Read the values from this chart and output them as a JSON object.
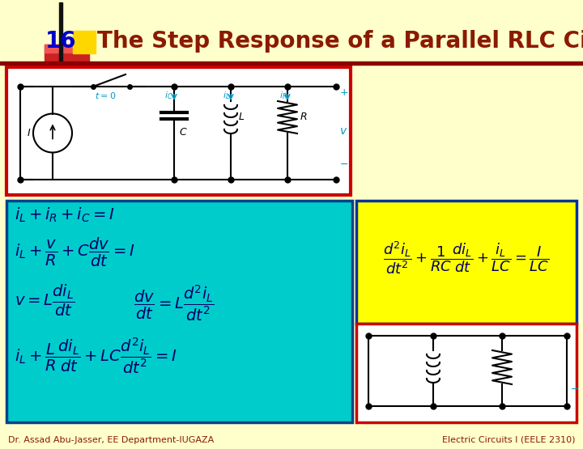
{
  "bg_color": "#FFFFCC",
  "title_text": "The Step Response of a Parallel RLC Circuit",
  "title_color": "#8B1A00",
  "title_fontsize": 20,
  "slide_number": "16",
  "slide_num_color": "#0000CC",
  "slide_num_fontsize": 20,
  "header_bar_color": "#8B0000",
  "yellow_accent_color": "#FFD700",
  "red_accent_color": "#CC2222",
  "vertical_bar_color": "#111111",
  "circuit_box_color": "#CC0000",
  "cyan_box_color": "#00CCCC",
  "yellow_box_color": "#FFFF00",
  "white_box_color": "#FFFFFF",
  "footer_left": "Dr. Assad Abu-Jasser, EE Department-IUGAZA",
  "footer_right": "Electric Circuits I (EELE 2310)",
  "footer_color": "#8B1A00",
  "footer_fontsize": 8,
  "eq_color": "#000066",
  "circuit_label_color": "#0099CC"
}
